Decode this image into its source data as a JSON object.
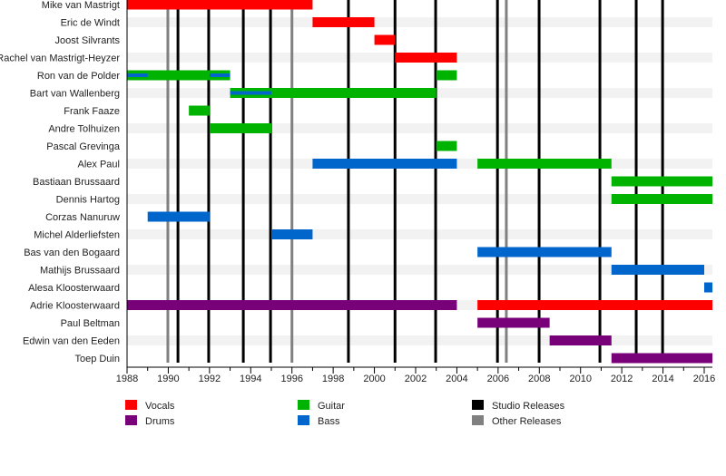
{
  "chart_data": {
    "type": "timeline",
    "title": "",
    "xlim": [
      1988,
      2016.4
    ],
    "x_ticks": [
      1988,
      1990,
      1992,
      1994,
      1996,
      1998,
      2000,
      2002,
      2004,
      2006,
      2008,
      2010,
      2012,
      2014,
      2016
    ],
    "roles": {
      "vocals": {
        "label": "Vocals",
        "color": "#ff0000"
      },
      "guitar": {
        "label": "Guitar",
        "color": "#00b300"
      },
      "studio": {
        "label": "Studio Releases",
        "color": "#000000"
      },
      "drums": {
        "label": "Drums",
        "color": "#780078"
      },
      "bass": {
        "label": "Bass",
        "color": "#0066cc"
      },
      "other": {
        "label": "Other Releases",
        "color": "#808080"
      }
    },
    "legend_order": [
      "vocals",
      "guitar",
      "studio",
      "drums",
      "bass",
      "other"
    ],
    "studio_releases": [
      1990.47,
      1991.96,
      1993.64,
      1994.96,
      1998.74,
      2001.0,
      2002.97,
      2005.97,
      2007.99,
      2010.94,
      2012.7,
      2013.98
    ],
    "other_releases": [
      1989.98,
      1996.0,
      2006.4
    ],
    "members": [
      {
        "name": "Mike van Mastrigt",
        "bars": [
          {
            "role": "vocals",
            "start": 1988,
            "end": 1997
          }
        ]
      },
      {
        "name": "Eric de Windt",
        "bars": [
          {
            "role": "vocals",
            "start": 1997,
            "end": 2000
          }
        ]
      },
      {
        "name": "Joost Silvrants",
        "bars": [
          {
            "role": "vocals",
            "start": 2000,
            "end": 2001
          }
        ]
      },
      {
        "name": "Rachel van Mastrigt-Heyzer",
        "bars": [
          {
            "role": "vocals",
            "start": 2001,
            "end": 2004
          }
        ]
      },
      {
        "name": "Ron van de Polder",
        "bars": [
          {
            "role": "guitar",
            "start": 1988,
            "end": 1993
          },
          {
            "role": "bass",
            "start": 1988,
            "end": 1989,
            "thin": true
          },
          {
            "role": "bass",
            "start": 1992,
            "end": 1993,
            "thin": true
          },
          {
            "role": "guitar",
            "start": 2003,
            "end": 2004
          }
        ]
      },
      {
        "name": "Bart van Wallenberg",
        "bars": [
          {
            "role": "guitar",
            "start": 1993,
            "end": 2003
          },
          {
            "role": "bass",
            "start": 1993,
            "end": 1995,
            "thin": true
          }
        ]
      },
      {
        "name": "Frank Faaze",
        "bars": [
          {
            "role": "guitar",
            "start": 1991,
            "end": 1992
          }
        ]
      },
      {
        "name": "Andre Tolhuizen",
        "bars": [
          {
            "role": "guitar",
            "start": 1992,
            "end": 1995
          }
        ]
      },
      {
        "name": "Pascal Grevinga",
        "bars": [
          {
            "role": "guitar",
            "start": 2003,
            "end": 2004
          }
        ]
      },
      {
        "name": "Alex Paul",
        "bars": [
          {
            "role": "bass",
            "start": 1997,
            "end": 2004
          },
          {
            "role": "guitar",
            "start": 2005,
            "end": 2011.5
          }
        ]
      },
      {
        "name": "Bastiaan Brussaard",
        "bars": [
          {
            "role": "guitar",
            "start": 2011.5,
            "end": 2016.4
          }
        ]
      },
      {
        "name": "Dennis Hartog",
        "bars": [
          {
            "role": "guitar",
            "start": 2011.5,
            "end": 2016.4
          }
        ]
      },
      {
        "name": "Corzas Nanuruw",
        "bars": [
          {
            "role": "bass",
            "start": 1989,
            "end": 1992
          }
        ]
      },
      {
        "name": "Michel Alderliefsten",
        "bars": [
          {
            "role": "bass",
            "start": 1995,
            "end": 1997
          }
        ]
      },
      {
        "name": "Bas van den Bogaard",
        "bars": [
          {
            "role": "bass",
            "start": 2005,
            "end": 2011.5
          }
        ]
      },
      {
        "name": "Mathijs Brussaard",
        "bars": [
          {
            "role": "bass",
            "start": 2011.5,
            "end": 2016
          }
        ]
      },
      {
        "name": "Alesa Kloosterwaard",
        "bars": [
          {
            "role": "bass",
            "start": 2016,
            "end": 2016.4
          }
        ]
      },
      {
        "name": "Adrie Kloosterwaard",
        "bars": [
          {
            "role": "drums",
            "start": 1988,
            "end": 2004
          },
          {
            "role": "vocals",
            "start": 2005,
            "end": 2016.4
          }
        ]
      },
      {
        "name": "Paul Beltman",
        "bars": [
          {
            "role": "drums",
            "start": 2005,
            "end": 2008.5
          }
        ]
      },
      {
        "name": "Edwin van den Eeden",
        "bars": [
          {
            "role": "drums",
            "start": 2008.5,
            "end": 2011.5
          }
        ]
      },
      {
        "name": "Toep Duin",
        "bars": [
          {
            "role": "drums",
            "start": 2011.5,
            "end": 2016.4
          }
        ]
      }
    ]
  }
}
